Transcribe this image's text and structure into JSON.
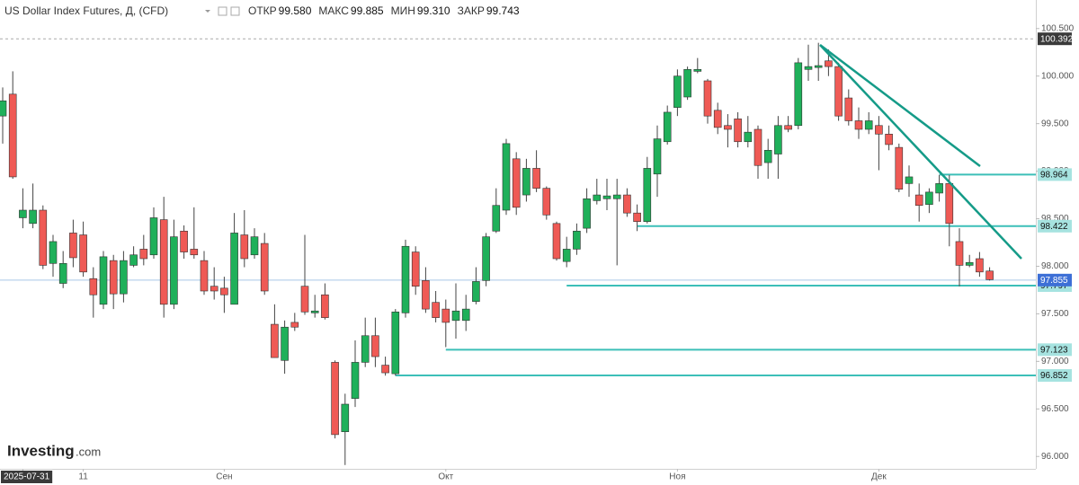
{
  "chart_data": {
    "type": "candlestick",
    "title": "US Dollar Index Futures, Д, (CFD)",
    "ohlc_header": [
      {
        "label": "ОТКР",
        "value": "99.580"
      },
      {
        "label": "МАКС",
        "value": "99.885"
      },
      {
        "label": "МИН",
        "value": "99.310"
      },
      {
        "label": "ЗАКР",
        "value": "99.743"
      }
    ],
    "categories": [
      null,
      null,
      "2025-07-31",
      null,
      null,
      null,
      null,
      null,
      "11",
      null,
      null,
      null,
      null,
      null,
      null,
      null,
      null,
      null,
      null,
      null,
      null,
      null,
      "Сен",
      null,
      null,
      null,
      null,
      null,
      null,
      null,
      null,
      null,
      null,
      null,
      null,
      null,
      null,
      null,
      null,
      null,
      null,
      null,
      null,
      null,
      "Окт",
      null,
      null,
      null,
      null,
      null,
      null,
      null,
      null,
      null,
      null,
      null,
      null,
      null,
      null,
      null,
      null,
      null,
      null,
      null,
      null,
      null,
      null,
      "Ноя",
      null,
      null,
      null,
      null,
      null,
      null,
      null,
      null,
      null,
      null,
      null,
      null,
      null,
      null,
      null,
      null,
      null,
      null,
      null,
      "Дек",
      null,
      null,
      null,
      null,
      null,
      null,
      null,
      null,
      null,
      null,
      null
    ],
    "open": [
      99.58,
      99.81,
      98.51,
      98.45,
      98.59,
      98.03,
      97.82,
      98.35,
      98.33,
      97.87,
      97.6,
      98.06,
      97.71,
      98.01,
      98.18,
      98.12,
      98.49,
      97.6,
      98.37,
      98.18,
      98.06,
      97.79,
      97.77,
      97.6,
      98.33,
      98.12,
      98.24,
      97.39,
      97.01,
      97.41,
      97.79,
      97.51,
      97.7,
      96.99,
      96.26,
      96.61,
      96.99,
      97.27,
      96.96,
      96.87,
      97.51,
      98.15,
      97.85,
      97.62,
      97.55,
      97.43,
      97.43,
      97.63,
      97.85,
      98.37,
      98.59,
      99.13,
      98.75,
      99.03,
      98.82,
      98.45,
      98.05,
      98.18,
      98.4,
      98.69,
      98.71,
      98.71,
      98.75,
      98.56,
      98.47,
      98.97,
      99.31,
      99.67,
      99.78,
      100.05,
      99.95,
      99.64,
      99.48,
      99.55,
      99.31,
      99.44,
      99.09,
      99.18,
      99.48,
      99.48,
      100.07,
      100.09,
      100.16,
      100.1,
      99.77,
      99.53,
      99.44,
      99.48,
      99.39,
      99.25,
      98.87,
      98.75,
      98.65,
      98.77,
      98.87,
      98.26,
      98.01,
      98.08,
      97.95
    ],
    "high": [
      99.88,
      100.05,
      98.82,
      98.87,
      98.64,
      98.33,
      98.16,
      98.49,
      98.47,
      97.99,
      98.16,
      98.12,
      98.16,
      98.21,
      98.33,
      98.62,
      98.73,
      98.49,
      98.43,
      98.62,
      98.16,
      97.99,
      97.89,
      98.56,
      98.59,
      98.4,
      98.35,
      97.6,
      97.43,
      97.51,
      98.33,
      97.7,
      97.82,
      97.01,
      96.66,
      97.22,
      97.46,
      97.46,
      97.05,
      97.55,
      98.28,
      98.21,
      97.99,
      97.74,
      97.65,
      97.82,
      97.7,
      97.99,
      98.35,
      98.82,
      99.34,
      99.2,
      99.13,
      99.22,
      98.84,
      98.47,
      98.31,
      98.45,
      98.82,
      98.92,
      98.92,
      98.92,
      98.82,
      98.65,
      99.15,
      99.48,
      99.69,
      100.07,
      100.1,
      100.19,
      99.97,
      99.72,
      99.6,
      99.62,
      99.58,
      99.48,
      99.34,
      99.58,
      99.58,
      100.19,
      100.33,
      100.35,
      100.28,
      100.14,
      99.86,
      99.67,
      99.62,
      99.58,
      99.48,
      99.29,
      99.06,
      98.87,
      98.82,
      98.96,
      98.96,
      98.4,
      98.12,
      98.15,
      97.99
    ],
    "low": [
      99.29,
      98.92,
      98.4,
      98.4,
      97.97,
      97.89,
      97.77,
      97.99,
      97.89,
      97.46,
      97.55,
      97.55,
      97.62,
      97.99,
      98.01,
      98.08,
      97.46,
      97.55,
      98.08,
      98.08,
      97.7,
      97.65,
      97.51,
      97.6,
      97.99,
      98.08,
      97.7,
      97.04,
      96.87,
      97.32,
      97.49,
      97.46,
      97.44,
      96.19,
      95.91,
      96.52,
      96.94,
      96.94,
      96.85,
      96.85,
      97.46,
      97.7,
      97.51,
      97.41,
      97.15,
      97.24,
      97.32,
      97.6,
      97.79,
      98.35,
      98.54,
      98.54,
      98.68,
      98.78,
      98.49,
      98.06,
      97.99,
      98.12,
      98.35,
      98.65,
      98.59,
      98.01,
      98.52,
      98.37,
      98.45,
      98.73,
      99.28,
      99.58,
      99.75,
      100.03,
      99.5,
      99.39,
      99.25,
      99.25,
      99.25,
      98.92,
      98.92,
      98.92,
      99.41,
      99.44,
      99.95,
      99.95,
      100.0,
      99.53,
      99.48,
      99.34,
      99.39,
      99.01,
      99.22,
      98.78,
      98.73,
      98.47,
      98.56,
      98.68,
      98.21,
      97.79,
      97.99,
      97.89,
      97.85
    ],
    "close": [
      99.74,
      98.94,
      98.59,
      98.59,
      98.01,
      98.26,
      98.03,
      98.09,
      97.94,
      97.7,
      98.1,
      97.71,
      98.06,
      98.12,
      98.08,
      98.51,
      97.6,
      98.31,
      98.15,
      98.12,
      97.74,
      97.74,
      97.7,
      98.35,
      98.08,
      98.31,
      97.74,
      97.04,
      97.36,
      97.36,
      97.52,
      97.53,
      97.46,
      96.23,
      96.55,
      96.99,
      97.27,
      97.05,
      96.88,
      97.52,
      98.21,
      97.79,
      97.55,
      97.46,
      97.41,
      97.53,
      97.55,
      97.84,
      98.31,
      98.64,
      99.29,
      98.62,
      99.03,
      98.82,
      98.54,
      98.08,
      98.18,
      98.37,
      98.71,
      98.75,
      98.74,
      98.75,
      98.56,
      98.47,
      99.03,
      99.34,
      99.62,
      100.0,
      100.07,
      100.07,
      99.58,
      99.46,
      99.44,
      99.31,
      99.41,
      99.06,
      99.22,
      99.48,
      99.44,
      100.14,
      100.1,
      100.11,
      100.1,
      99.58,
      99.53,
      99.44,
      99.53,
      99.39,
      99.28,
      98.81,
      98.94,
      98.64,
      98.78,
      98.87,
      98.45,
      98.01,
      98.04,
      97.94,
      97.86
    ],
    "up_color": "#1fb05a",
    "down_color": "#ef5a55",
    "ylim": [
      95.87,
      100.8
    ],
    "yticks": [
      {
        "value": 96,
        "label": "96.000"
      },
      {
        "value": 96.5,
        "label": "96.500"
      },
      {
        "value": 97,
        "label": "97.000"
      },
      {
        "value": 97.5,
        "label": "97.500"
      },
      {
        "value": 98,
        "label": "98.000"
      },
      {
        "value": 98.5,
        "label": "98.500"
      },
      {
        "value": 99,
        "label": "99.000"
      },
      {
        "value": 99.5,
        "label": "99.500"
      },
      {
        "value": 100,
        "label": "100.000"
      },
      {
        "value": 100.5,
        "label": "100.500"
      }
    ],
    "grid": false,
    "price_line": {
      "value": 97.855,
      "color": "#3d6fd6"
    },
    "high_line": {
      "value": 100.392,
      "color": "#3a3a3a"
    },
    "levels": [
      98.964,
      98.422,
      97.797,
      97.123,
      96.852
    ],
    "level_color": "#3cbfb8",
    "watermark": {
      "brand": "Investing",
      "suffix": ".com"
    }
  }
}
